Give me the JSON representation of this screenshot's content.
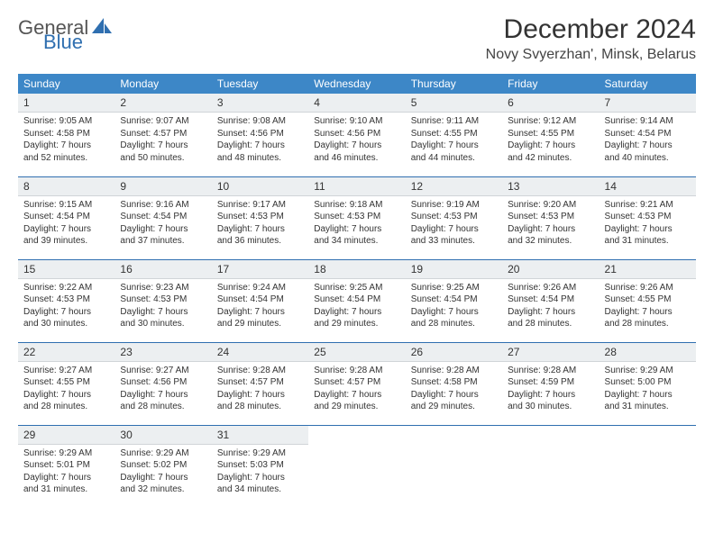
{
  "brand": {
    "text1": "General",
    "text2": "Blue",
    "shape_color": "#2f6fb0",
    "text1_color": "#555555",
    "text2_color": "#2f6fb0"
  },
  "title": "December 2024",
  "location": "Novy Svyerzhan', Minsk, Belarus",
  "header_bg": "#3d87c7",
  "row_divider": "#2f6fb0",
  "daynum_bg": "#eceff1",
  "weekdays": [
    "Sunday",
    "Monday",
    "Tuesday",
    "Wednesday",
    "Thursday",
    "Friday",
    "Saturday"
  ],
  "weeks": [
    [
      {
        "n": "1",
        "sr": "Sunrise: 9:05 AM",
        "ss": "Sunset: 4:58 PM",
        "d1": "Daylight: 7 hours",
        "d2": "and 52 minutes."
      },
      {
        "n": "2",
        "sr": "Sunrise: 9:07 AM",
        "ss": "Sunset: 4:57 PM",
        "d1": "Daylight: 7 hours",
        "d2": "and 50 minutes."
      },
      {
        "n": "3",
        "sr": "Sunrise: 9:08 AM",
        "ss": "Sunset: 4:56 PM",
        "d1": "Daylight: 7 hours",
        "d2": "and 48 minutes."
      },
      {
        "n": "4",
        "sr": "Sunrise: 9:10 AM",
        "ss": "Sunset: 4:56 PM",
        "d1": "Daylight: 7 hours",
        "d2": "and 46 minutes."
      },
      {
        "n": "5",
        "sr": "Sunrise: 9:11 AM",
        "ss": "Sunset: 4:55 PM",
        "d1": "Daylight: 7 hours",
        "d2": "and 44 minutes."
      },
      {
        "n": "6",
        "sr": "Sunrise: 9:12 AM",
        "ss": "Sunset: 4:55 PM",
        "d1": "Daylight: 7 hours",
        "d2": "and 42 minutes."
      },
      {
        "n": "7",
        "sr": "Sunrise: 9:14 AM",
        "ss": "Sunset: 4:54 PM",
        "d1": "Daylight: 7 hours",
        "d2": "and 40 minutes."
      }
    ],
    [
      {
        "n": "8",
        "sr": "Sunrise: 9:15 AM",
        "ss": "Sunset: 4:54 PM",
        "d1": "Daylight: 7 hours",
        "d2": "and 39 minutes."
      },
      {
        "n": "9",
        "sr": "Sunrise: 9:16 AM",
        "ss": "Sunset: 4:54 PM",
        "d1": "Daylight: 7 hours",
        "d2": "and 37 minutes."
      },
      {
        "n": "10",
        "sr": "Sunrise: 9:17 AM",
        "ss": "Sunset: 4:53 PM",
        "d1": "Daylight: 7 hours",
        "d2": "and 36 minutes."
      },
      {
        "n": "11",
        "sr": "Sunrise: 9:18 AM",
        "ss": "Sunset: 4:53 PM",
        "d1": "Daylight: 7 hours",
        "d2": "and 34 minutes."
      },
      {
        "n": "12",
        "sr": "Sunrise: 9:19 AM",
        "ss": "Sunset: 4:53 PM",
        "d1": "Daylight: 7 hours",
        "d2": "and 33 minutes."
      },
      {
        "n": "13",
        "sr": "Sunrise: 9:20 AM",
        "ss": "Sunset: 4:53 PM",
        "d1": "Daylight: 7 hours",
        "d2": "and 32 minutes."
      },
      {
        "n": "14",
        "sr": "Sunrise: 9:21 AM",
        "ss": "Sunset: 4:53 PM",
        "d1": "Daylight: 7 hours",
        "d2": "and 31 minutes."
      }
    ],
    [
      {
        "n": "15",
        "sr": "Sunrise: 9:22 AM",
        "ss": "Sunset: 4:53 PM",
        "d1": "Daylight: 7 hours",
        "d2": "and 30 minutes."
      },
      {
        "n": "16",
        "sr": "Sunrise: 9:23 AM",
        "ss": "Sunset: 4:53 PM",
        "d1": "Daylight: 7 hours",
        "d2": "and 30 minutes."
      },
      {
        "n": "17",
        "sr": "Sunrise: 9:24 AM",
        "ss": "Sunset: 4:54 PM",
        "d1": "Daylight: 7 hours",
        "d2": "and 29 minutes."
      },
      {
        "n": "18",
        "sr": "Sunrise: 9:25 AM",
        "ss": "Sunset: 4:54 PM",
        "d1": "Daylight: 7 hours",
        "d2": "and 29 minutes."
      },
      {
        "n": "19",
        "sr": "Sunrise: 9:25 AM",
        "ss": "Sunset: 4:54 PM",
        "d1": "Daylight: 7 hours",
        "d2": "and 28 minutes."
      },
      {
        "n": "20",
        "sr": "Sunrise: 9:26 AM",
        "ss": "Sunset: 4:54 PM",
        "d1": "Daylight: 7 hours",
        "d2": "and 28 minutes."
      },
      {
        "n": "21",
        "sr": "Sunrise: 9:26 AM",
        "ss": "Sunset: 4:55 PM",
        "d1": "Daylight: 7 hours",
        "d2": "and 28 minutes."
      }
    ],
    [
      {
        "n": "22",
        "sr": "Sunrise: 9:27 AM",
        "ss": "Sunset: 4:55 PM",
        "d1": "Daylight: 7 hours",
        "d2": "and 28 minutes."
      },
      {
        "n": "23",
        "sr": "Sunrise: 9:27 AM",
        "ss": "Sunset: 4:56 PM",
        "d1": "Daylight: 7 hours",
        "d2": "and 28 minutes."
      },
      {
        "n": "24",
        "sr": "Sunrise: 9:28 AM",
        "ss": "Sunset: 4:57 PM",
        "d1": "Daylight: 7 hours",
        "d2": "and 28 minutes."
      },
      {
        "n": "25",
        "sr": "Sunrise: 9:28 AM",
        "ss": "Sunset: 4:57 PM",
        "d1": "Daylight: 7 hours",
        "d2": "and 29 minutes."
      },
      {
        "n": "26",
        "sr": "Sunrise: 9:28 AM",
        "ss": "Sunset: 4:58 PM",
        "d1": "Daylight: 7 hours",
        "d2": "and 29 minutes."
      },
      {
        "n": "27",
        "sr": "Sunrise: 9:28 AM",
        "ss": "Sunset: 4:59 PM",
        "d1": "Daylight: 7 hours",
        "d2": "and 30 minutes."
      },
      {
        "n": "28",
        "sr": "Sunrise: 9:29 AM",
        "ss": "Sunset: 5:00 PM",
        "d1": "Daylight: 7 hours",
        "d2": "and 31 minutes."
      }
    ],
    [
      {
        "n": "29",
        "sr": "Sunrise: 9:29 AM",
        "ss": "Sunset: 5:01 PM",
        "d1": "Daylight: 7 hours",
        "d2": "and 31 minutes."
      },
      {
        "n": "30",
        "sr": "Sunrise: 9:29 AM",
        "ss": "Sunset: 5:02 PM",
        "d1": "Daylight: 7 hours",
        "d2": "and 32 minutes."
      },
      {
        "n": "31",
        "sr": "Sunrise: 9:29 AM",
        "ss": "Sunset: 5:03 PM",
        "d1": "Daylight: 7 hours",
        "d2": "and 34 minutes."
      },
      {
        "empty": true
      },
      {
        "empty": true
      },
      {
        "empty": true
      },
      {
        "empty": true
      }
    ]
  ]
}
